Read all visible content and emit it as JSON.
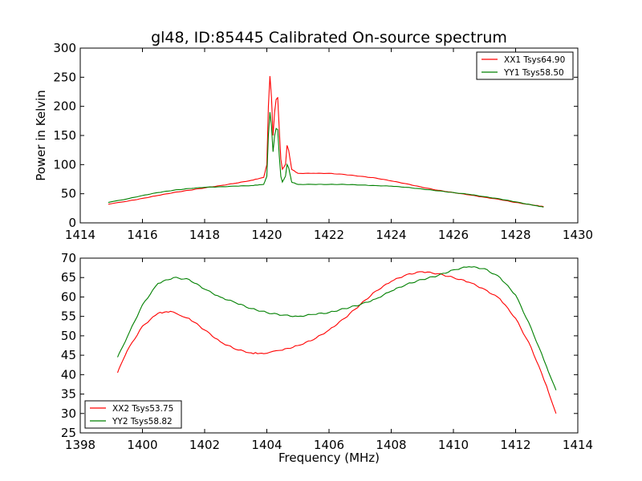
{
  "title": "gl48, ID:85445 Calibrated On-source spectrum",
  "chart_data": [
    {
      "type": "line",
      "ylabel": "Power in Kelvin",
      "xlabel": "",
      "xlim": [
        1414,
        1430
      ],
      "ylim": [
        0,
        300
      ],
      "xticks": [
        1414,
        1416,
        1418,
        1420,
        1422,
        1424,
        1426,
        1428,
        1430
      ],
      "yticks": [
        0,
        50,
        100,
        150,
        200,
        250,
        300
      ],
      "legend_position": "top-right",
      "series": [
        {
          "name": "XX1 Tsys64.90",
          "color": "#ff0000",
          "points": [
            [
              1414.9,
              32
            ],
            [
              1415.5,
              37
            ],
            [
              1416,
              42
            ],
            [
              1416.5,
              47
            ],
            [
              1417,
              52
            ],
            [
              1417.5,
              56
            ],
            [
              1418,
              60
            ],
            [
              1418.5,
              64
            ],
            [
              1419,
              68
            ],
            [
              1419.5,
              73
            ],
            [
              1419.9,
              78
            ],
            [
              1420.0,
              100
            ],
            [
              1420.05,
              200
            ],
            [
              1420.1,
              252
            ],
            [
              1420.15,
              215
            ],
            [
              1420.2,
              150
            ],
            [
              1420.25,
              190
            ],
            [
              1420.3,
              212
            ],
            [
              1420.35,
              215
            ],
            [
              1420.4,
              160
            ],
            [
              1420.45,
              110
            ],
            [
              1420.5,
              92
            ],
            [
              1420.6,
              100
            ],
            [
              1420.65,
              133
            ],
            [
              1420.7,
              125
            ],
            [
              1420.8,
              92
            ],
            [
              1421,
              85
            ],
            [
              1421.5,
              85
            ],
            [
              1422,
              85
            ],
            [
              1422.5,
              83
            ],
            [
              1423,
              80
            ],
            [
              1423.5,
              77
            ],
            [
              1424,
              72
            ],
            [
              1424.5,
              67
            ],
            [
              1425,
              61
            ],
            [
              1425.5,
              56
            ],
            [
              1426,
              52
            ],
            [
              1426.5,
              48
            ],
            [
              1427,
              44
            ],
            [
              1427.5,
              40
            ],
            [
              1428,
              35
            ],
            [
              1428.5,
              31
            ],
            [
              1428.9,
              28
            ]
          ]
        },
        {
          "name": "YY1 Tsys58.50",
          "color": "#008000",
          "points": [
            [
              1414.9,
              35
            ],
            [
              1415.5,
              41
            ],
            [
              1416,
              47
            ],
            [
              1416.5,
              52
            ],
            [
              1417,
              56
            ],
            [
              1417.5,
              59
            ],
            [
              1418,
              61
            ],
            [
              1418.5,
              62
            ],
            [
              1419,
              63
            ],
            [
              1419.5,
              64
            ],
            [
              1419.9,
              66
            ],
            [
              1420.0,
              80
            ],
            [
              1420.05,
              150
            ],
            [
              1420.1,
              190
            ],
            [
              1420.15,
              165
            ],
            [
              1420.2,
              122
            ],
            [
              1420.25,
              150
            ],
            [
              1420.3,
              162
            ],
            [
              1420.35,
              160
            ],
            [
              1420.4,
              115
            ],
            [
              1420.45,
              80
            ],
            [
              1420.5,
              70
            ],
            [
              1420.6,
              80
            ],
            [
              1420.65,
              100
            ],
            [
              1420.7,
              95
            ],
            [
              1420.8,
              70
            ],
            [
              1421,
              66
            ],
            [
              1421.5,
              66
            ],
            [
              1422,
              66
            ],
            [
              1422.5,
              66
            ],
            [
              1423,
              65
            ],
            [
              1423.5,
              64
            ],
            [
              1424,
              63
            ],
            [
              1424.5,
              61
            ],
            [
              1425,
              58
            ],
            [
              1425.5,
              55
            ],
            [
              1426,
              52
            ],
            [
              1426.5,
              49
            ],
            [
              1427,
              45
            ],
            [
              1427.5,
              41
            ],
            [
              1428,
              36
            ],
            [
              1428.5,
              31
            ],
            [
              1428.9,
              27
            ]
          ]
        }
      ]
    },
    {
      "type": "line",
      "xlabel": "Frequency (MHz)",
      "ylabel": "",
      "xlim": [
        1398,
        1414
      ],
      "ylim": [
        25,
        70
      ],
      "xticks": [
        1398,
        1400,
        1402,
        1404,
        1406,
        1408,
        1410,
        1412,
        1414
      ],
      "yticks": [
        25,
        30,
        35,
        40,
        45,
        50,
        55,
        60,
        65,
        70
      ],
      "legend_position": "bottom-left",
      "series": [
        {
          "name": "XX2 Tsys53.75",
          "color": "#ff0000",
          "points": [
            [
              1399.2,
              40.5
            ],
            [
              1399.5,
              46
            ],
            [
              1400,
              52.5
            ],
            [
              1400.5,
              55.8
            ],
            [
              1400.9,
              56.3
            ],
            [
              1401.5,
              54.5
            ],
            [
              1402,
              51.5
            ],
            [
              1402.5,
              48.5
            ],
            [
              1403,
              46.5
            ],
            [
              1403.5,
              45.6
            ],
            [
              1403.9,
              45.4
            ],
            [
              1404.5,
              46.3
            ],
            [
              1405,
              47.5
            ],
            [
              1405.5,
              49
            ],
            [
              1406,
              51.5
            ],
            [
              1406.5,
              54.5
            ],
            [
              1407,
              58
            ],
            [
              1407.5,
              61.5
            ],
            [
              1408,
              64
            ],
            [
              1408.5,
              65.8
            ],
            [
              1409,
              66.5
            ],
            [
              1409.5,
              66
            ],
            [
              1410,
              65
            ],
            [
              1410.5,
              63.8
            ],
            [
              1411,
              62
            ],
            [
              1411.5,
              59.5
            ],
            [
              1412,
              54.5
            ],
            [
              1412.5,
              47
            ],
            [
              1413,
              37
            ],
            [
              1413.3,
              30
            ]
          ]
        },
        {
          "name": "YY2 Tsys58.82",
          "color": "#008000",
          "points": [
            [
              1399.2,
              44.5
            ],
            [
              1399.5,
              49.5
            ],
            [
              1400,
              58
            ],
            [
              1400.5,
              63.5
            ],
            [
              1401,
              65
            ],
            [
              1401.5,
              64.5
            ],
            [
              1402,
              62
            ],
            [
              1402.5,
              60
            ],
            [
              1403,
              58.5
            ],
            [
              1403.5,
              57
            ],
            [
              1404,
              56
            ],
            [
              1404.5,
              55.3
            ],
            [
              1405,
              55
            ],
            [
              1405.5,
              55.5
            ],
            [
              1406,
              56
            ],
            [
              1406.5,
              57
            ],
            [
              1407,
              58
            ],
            [
              1407.5,
              59.5
            ],
            [
              1408,
              61.5
            ],
            [
              1408.5,
              63.3
            ],
            [
              1409,
              64.5
            ],
            [
              1409.5,
              65.5
            ],
            [
              1410,
              67
            ],
            [
              1410.5,
              67.8
            ],
            [
              1411,
              67.3
            ],
            [
              1411.5,
              65
            ],
            [
              1412,
              60.5
            ],
            [
              1412.5,
              52
            ],
            [
              1413,
              42
            ],
            [
              1413.3,
              36
            ]
          ]
        }
      ]
    }
  ]
}
